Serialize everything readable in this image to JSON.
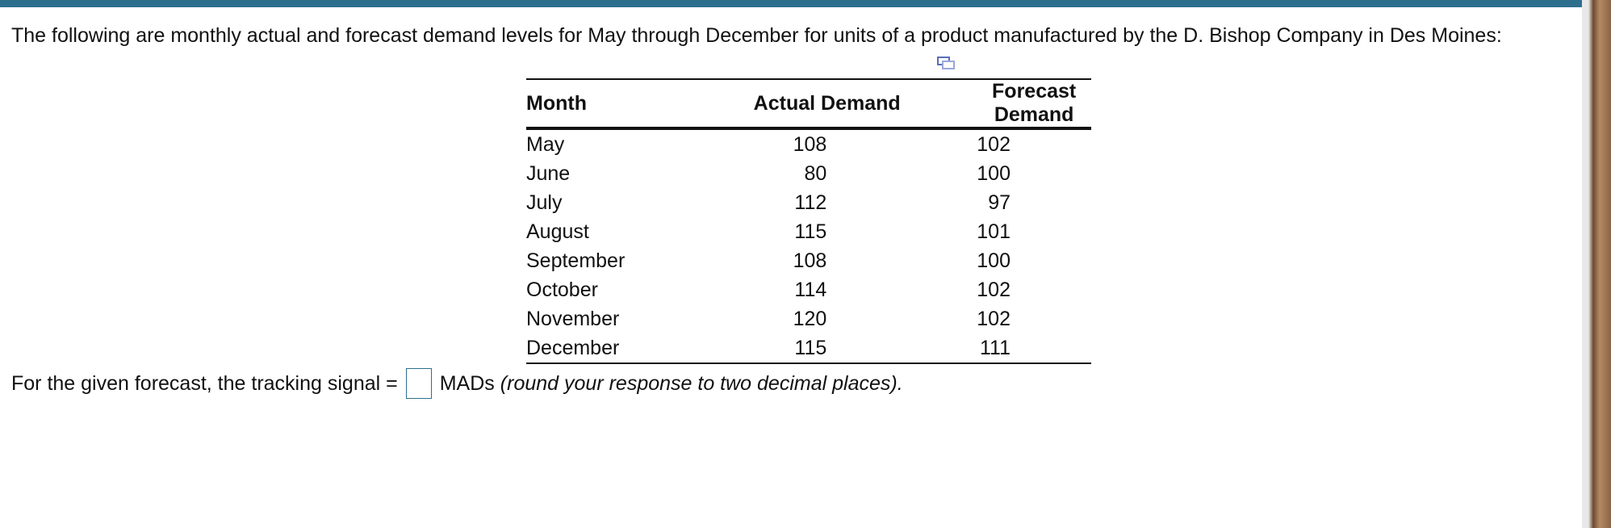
{
  "intro": "The following are monthly actual and forecast demand levels for May through December for units of a product manufactured by the D. Bishop Company in Des Moines:",
  "table": {
    "header": [
      "Month",
      "Actual Demand",
      "Forecast Demand"
    ],
    "rows": [
      [
        "May",
        108,
        102
      ],
      [
        "June",
        80,
        100
      ],
      [
        "July",
        112,
        97
      ],
      [
        "August",
        115,
        101
      ],
      [
        "September",
        108,
        100
      ],
      [
        "October",
        114,
        102
      ],
      [
        "November",
        120,
        102
      ],
      [
        "December",
        115,
        111
      ]
    ]
  },
  "prompt": {
    "before": "For the given forecast, the tracking signal =",
    "unit": "MADs",
    "note": "(round your response to two decimal places)."
  }
}
